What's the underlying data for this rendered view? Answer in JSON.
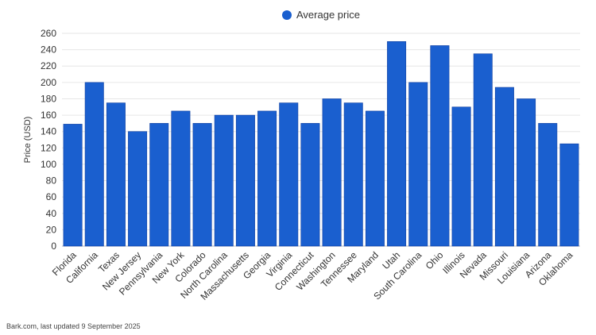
{
  "chart_data": {
    "type": "bar",
    "categories": [
      "Florida",
      "California",
      "Texas",
      "New Jersey",
      "Pennsylvania",
      "New York",
      "Colorado",
      "North Carolina",
      "Massachusetts",
      "Georgia",
      "Virginia",
      "Connecticut",
      "Washington",
      "Tennessee",
      "Maryland",
      "Utah",
      "South Carolina",
      "Ohio",
      "Illinois",
      "Nevada",
      "Missouri",
      "Louisiana",
      "Arizona",
      "Oklahoma"
    ],
    "series": [
      {
        "name": "Average price",
        "values": [
          149,
          200,
          175,
          140,
          150,
          165,
          150,
          160,
          160,
          165,
          175,
          150,
          180,
          175,
          165,
          250,
          200,
          245,
          170,
          235,
          194,
          180,
          150,
          125
        ]
      }
    ],
    "ylabel": "Price (USD)",
    "xlabel": "",
    "ylim": [
      0,
      260
    ],
    "yticks": [
      0,
      20,
      40,
      60,
      80,
      100,
      120,
      140,
      160,
      180,
      200,
      220,
      240,
      260
    ],
    "grid": true,
    "legend_position": "top-center",
    "colors": {
      "bar": "#1a5fcf",
      "bar_stroke": "#0f3fa0",
      "grid": "#e6e6e6"
    }
  },
  "footer": {
    "source": "Bark.com, last updated 9 September 2025"
  }
}
